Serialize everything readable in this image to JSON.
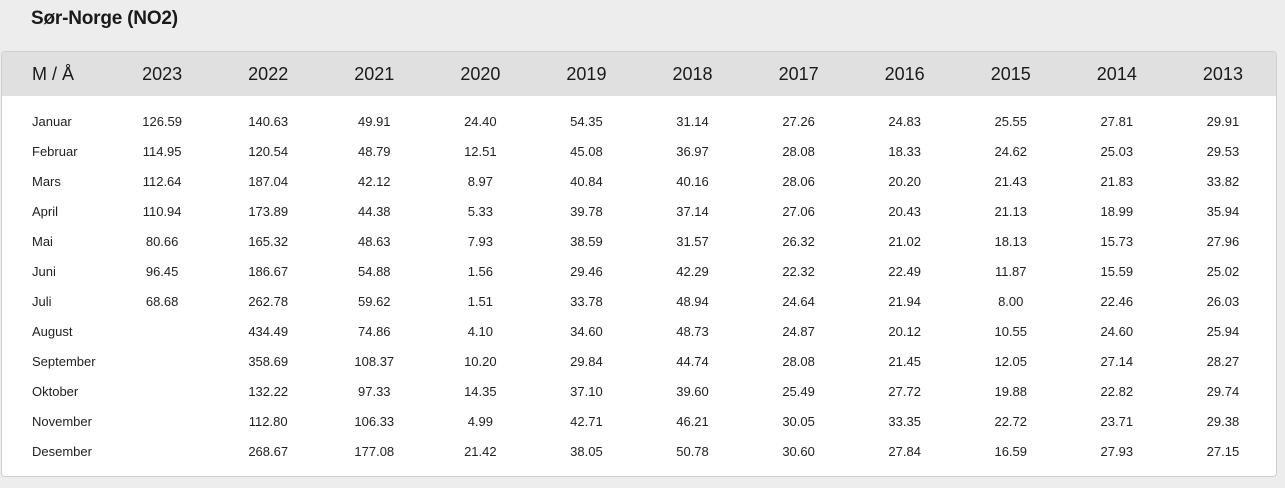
{
  "page": {
    "title": "Sør-Norge (NO2)"
  },
  "table": {
    "month_header": "M / Å",
    "years": [
      "2023",
      "2022",
      "2021",
      "2020",
      "2019",
      "2018",
      "2017",
      "2016",
      "2015",
      "2014",
      "2013"
    ],
    "rows": [
      {
        "month": "Januar",
        "values": [
          "126.59",
          "140.63",
          "49.91",
          "24.40",
          "54.35",
          "31.14",
          "27.26",
          "24.83",
          "25.55",
          "27.81",
          "29.91"
        ]
      },
      {
        "month": "Februar",
        "values": [
          "114.95",
          "120.54",
          "48.79",
          "12.51",
          "45.08",
          "36.97",
          "28.08",
          "18.33",
          "24.62",
          "25.03",
          "29.53"
        ]
      },
      {
        "month": "Mars",
        "values": [
          "112.64",
          "187.04",
          "42.12",
          "8.97",
          "40.84",
          "40.16",
          "28.06",
          "20.20",
          "21.43",
          "21.83",
          "33.82"
        ]
      },
      {
        "month": "April",
        "values": [
          "110.94",
          "173.89",
          "44.38",
          "5.33",
          "39.78",
          "37.14",
          "27.06",
          "20.43",
          "21.13",
          "18.99",
          "35.94"
        ]
      },
      {
        "month": "Mai",
        "values": [
          "80.66",
          "165.32",
          "48.63",
          "7.93",
          "38.59",
          "31.57",
          "26.32",
          "21.02",
          "18.13",
          "15.73",
          "27.96"
        ]
      },
      {
        "month": "Juni",
        "values": [
          "96.45",
          "186.67",
          "54.88",
          "1.56",
          "29.46",
          "42.29",
          "22.32",
          "22.49",
          "11.87",
          "15.59",
          "25.02"
        ]
      },
      {
        "month": "Juli",
        "values": [
          "68.68",
          "262.78",
          "59.62",
          "1.51",
          "33.78",
          "48.94",
          "24.64",
          "21.94",
          "8.00",
          "22.46",
          "26.03"
        ]
      },
      {
        "month": "August",
        "values": [
          "",
          "434.49",
          "74.86",
          "4.10",
          "34.60",
          "48.73",
          "24.87",
          "20.12",
          "10.55",
          "24.60",
          "25.94"
        ]
      },
      {
        "month": "September",
        "values": [
          "",
          "358.69",
          "108.37",
          "10.20",
          "29.84",
          "44.74",
          "28.08",
          "21.45",
          "12.05",
          "27.14",
          "28.27"
        ]
      },
      {
        "month": "Oktober",
        "values": [
          "",
          "132.22",
          "97.33",
          "14.35",
          "37.10",
          "39.60",
          "25.49",
          "27.72",
          "19.88",
          "22.82",
          "29.74"
        ]
      },
      {
        "month": "November",
        "values": [
          "",
          "112.80",
          "106.33",
          "4.99",
          "42.71",
          "46.21",
          "30.05",
          "33.35",
          "22.72",
          "23.71",
          "29.38"
        ]
      },
      {
        "month": "Desember",
        "values": [
          "",
          "268.67",
          "177.08",
          "21.42",
          "38.05",
          "50.78",
          "30.60",
          "27.84",
          "16.59",
          "27.93",
          "27.15"
        ]
      }
    ]
  }
}
